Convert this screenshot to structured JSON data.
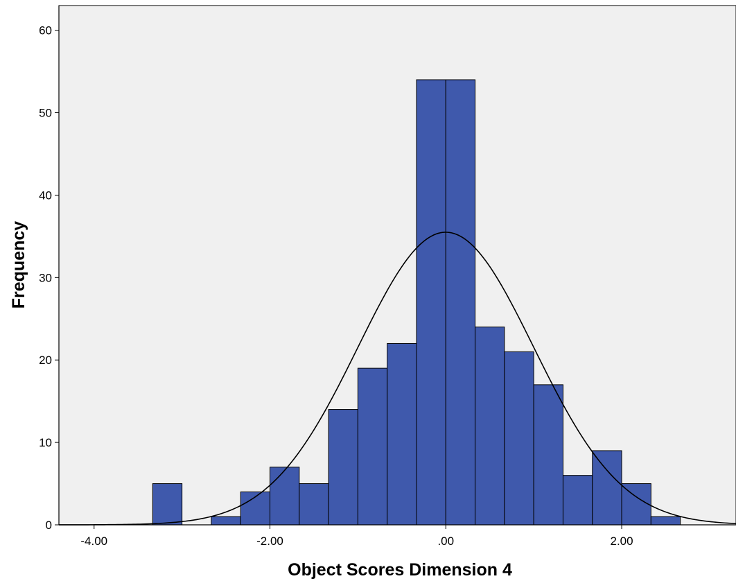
{
  "chart_data": {
    "type": "bar",
    "subtype": "histogram",
    "title": "",
    "xlabel": "Object Scores Dimension 4",
    "ylabel": "Frequency",
    "xlim": [
      -4.4,
      3.3
    ],
    "ylim": [
      0,
      63
    ],
    "bin_width": 0.3333,
    "bins": [
      {
        "start": -3.3333,
        "end": -3.0,
        "count": 5
      },
      {
        "start": -3.0,
        "end": -2.6667,
        "count": 0
      },
      {
        "start": -2.6667,
        "end": -2.3333,
        "count": 1
      },
      {
        "start": -2.3333,
        "end": -2.0,
        "count": 4
      },
      {
        "start": -2.0,
        "end": -1.6667,
        "count": 7
      },
      {
        "start": -1.6667,
        "end": -1.3333,
        "count": 5
      },
      {
        "start": -1.3333,
        "end": -1.0,
        "count": 14
      },
      {
        "start": -1.0,
        "end": -0.6667,
        "count": 19
      },
      {
        "start": -0.6667,
        "end": -0.3333,
        "count": 22
      },
      {
        "start": -0.3333,
        "end": 0.0,
        "count": 54
      },
      {
        "start": 0.0,
        "end": 0.3333,
        "count": 54
      },
      {
        "start": 0.3333,
        "end": 0.6667,
        "count": 24
      },
      {
        "start": 0.6667,
        "end": 1.0,
        "count": 21
      },
      {
        "start": 1.0,
        "end": 1.3333,
        "count": 17
      },
      {
        "start": 1.3333,
        "end": 1.6667,
        "count": 6
      },
      {
        "start": 1.6667,
        "end": 2.0,
        "count": 9
      },
      {
        "start": 2.0,
        "end": 2.3333,
        "count": 5
      },
      {
        "start": 2.3333,
        "end": 2.6667,
        "count": 1
      }
    ],
    "normal_curve": {
      "mean": 0.0,
      "sd": 1.0,
      "peak": 35.5
    },
    "x_ticks": [
      {
        "value": -4,
        "label": "-4.00"
      },
      {
        "value": -2,
        "label": "-2.00"
      },
      {
        "value": 0,
        "label": ".00"
      },
      {
        "value": 2,
        "label": "2.00"
      }
    ],
    "y_ticks": [
      {
        "value": 0,
        "label": "0"
      },
      {
        "value": 10,
        "label": "10"
      },
      {
        "value": 20,
        "label": "20"
      },
      {
        "value": 30,
        "label": "30"
      },
      {
        "value": 40,
        "label": "40"
      },
      {
        "value": 50,
        "label": "50"
      },
      {
        "value": 60,
        "label": "60"
      }
    ],
    "colors": {
      "bar_fill": "#3f59ac",
      "bar_stroke": "#000000",
      "plot_background": "#f0f0f0",
      "curve": "#000000"
    },
    "grid": false,
    "legend": "none"
  }
}
